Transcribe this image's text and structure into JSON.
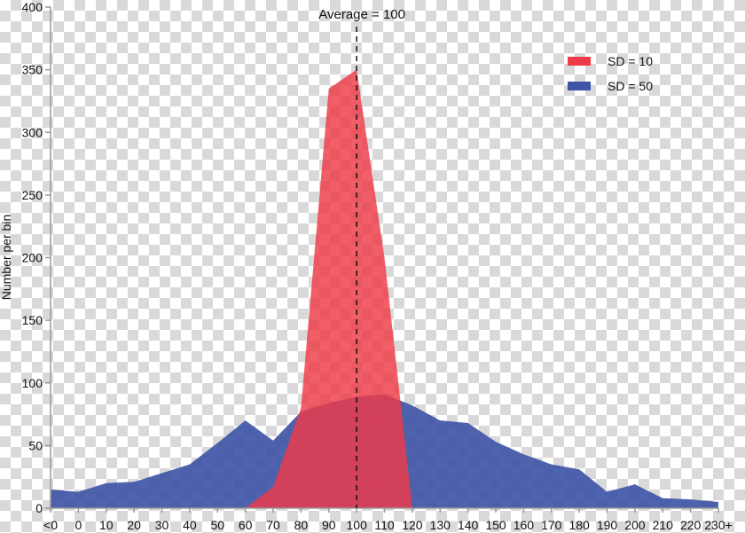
{
  "chart_data": {
    "type": "area",
    "ylabel": "Number per bin",
    "xlabel": "",
    "categories": [
      "<0",
      "0",
      "10",
      "20",
      "30",
      "40",
      "50",
      "60",
      "70",
      "80",
      "90",
      "100",
      "110",
      "120",
      "130",
      "140",
      "150",
      "160",
      "170",
      "180",
      "190",
      "200",
      "210",
      "220",
      "230+"
    ],
    "ylim": [
      0,
      400
    ],
    "yticks": [
      0,
      50,
      100,
      150,
      200,
      250,
      300,
      350,
      400
    ],
    "series": [
      {
        "name": "SD = 50",
        "color": "#3f55a6",
        "values": [
          15,
          13,
          20,
          21,
          28,
          35,
          52,
          70,
          54,
          77,
          84,
          89,
          91,
          82,
          70,
          68,
          53,
          43,
          35,
          31,
          13,
          19,
          8,
          7,
          5
        ]
      },
      {
        "name": "SD = 10",
        "color": "#ef3b47",
        "values": [
          0,
          0,
          0,
          0,
          0,
          0,
          0,
          0,
          17,
          80,
          335,
          350,
          200,
          0,
          0,
          0,
          0,
          0,
          0,
          0,
          0,
          0,
          0,
          0,
          0
        ]
      }
    ],
    "annotation": {
      "label": "Average = 100",
      "x_category": "100"
    },
    "legend_position": "top-right",
    "grid": false
  }
}
